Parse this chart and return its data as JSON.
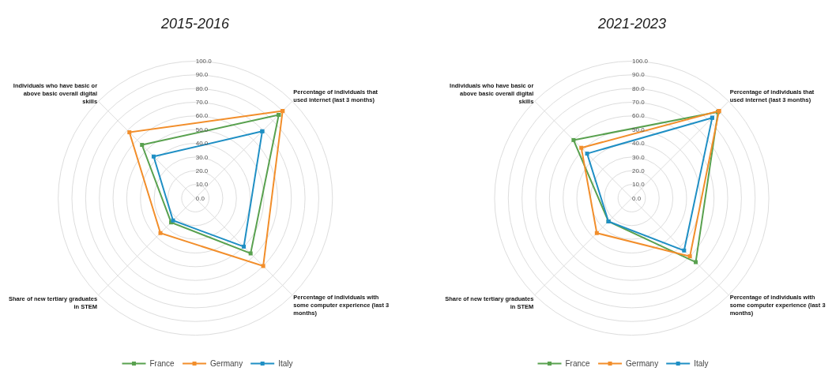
{
  "chart_data": [
    {
      "type": "radar",
      "title": "2015-2016",
      "categories": [
        "Percentage of individuals that used internet (last 3 months)",
        "Percentage of individuals with some computer experience (last 3 months)",
        "Share of new tertiary graduates in STEM",
        "Individuals who have basic or above basic overall digital skills"
      ],
      "series": [
        {
          "name": "France",
          "color": "#59a14f",
          "values": [
            86,
            57,
            25,
            55
          ]
        },
        {
          "name": "Germany",
          "color": "#f28e2b",
          "values": [
            90,
            70,
            36,
            68
          ]
        },
        {
          "name": "Italy",
          "color": "#1f8fc4",
          "values": [
            69,
            50,
            23,
            43
          ]
        }
      ],
      "ylim": [
        0,
        100
      ],
      "yticks": [
        {
          "value": 0,
          "label": "0.0"
        },
        {
          "value": 10,
          "label": "10.0"
        },
        {
          "value": 20,
          "label": "20.0"
        },
        {
          "value": 30,
          "label": "30.0"
        },
        {
          "value": 40,
          "label": "40.0"
        },
        {
          "value": 50,
          "label": "50.0"
        },
        {
          "value": 60,
          "label": "60.0"
        },
        {
          "value": 70,
          "label": "70.0"
        },
        {
          "value": 80,
          "label": "80.0"
        },
        {
          "value": 90,
          "label": "90.0"
        },
        {
          "value": 100,
          "label": "100.0"
        }
      ],
      "grid": true,
      "legend": "bottom",
      "marker": "square"
    },
    {
      "type": "radar",
      "title": "2021-2023",
      "categories": [
        "Percentage of individuals that used internet (last 3 months)",
        "Percentage of individuals with some computer experience (last 3 months)",
        "Share of new tertiary graduates in STEM",
        "Individuals who have basic or above basic overall digital skills"
      ],
      "series": [
        {
          "name": "France",
          "color": "#59a14f",
          "values": [
            89,
            66,
            24,
            60
          ]
        },
        {
          "name": "Germany",
          "color": "#f28e2b",
          "values": [
            90,
            60,
            36,
            52
          ]
        },
        {
          "name": "Italy",
          "color": "#1f8fc4",
          "values": [
            83,
            54,
            24,
            46
          ]
        }
      ],
      "ylim": [
        0,
        100
      ],
      "yticks": [
        {
          "value": 0,
          "label": "0.0"
        },
        {
          "value": 10,
          "label": "10.0"
        },
        {
          "value": 20,
          "label": "20.0"
        },
        {
          "value": 30,
          "label": "30.0"
        },
        {
          "value": 40,
          "label": "40.0"
        },
        {
          "value": 50,
          "label": "50.0"
        },
        {
          "value": 60,
          "label": "60.0"
        },
        {
          "value": 70,
          "label": "70.0"
        },
        {
          "value": 80,
          "label": "80.0"
        },
        {
          "value": 90,
          "label": "90.0"
        },
        {
          "value": 100,
          "label": "100.0"
        }
      ],
      "grid": true,
      "legend": "bottom",
      "marker": "square"
    }
  ]
}
